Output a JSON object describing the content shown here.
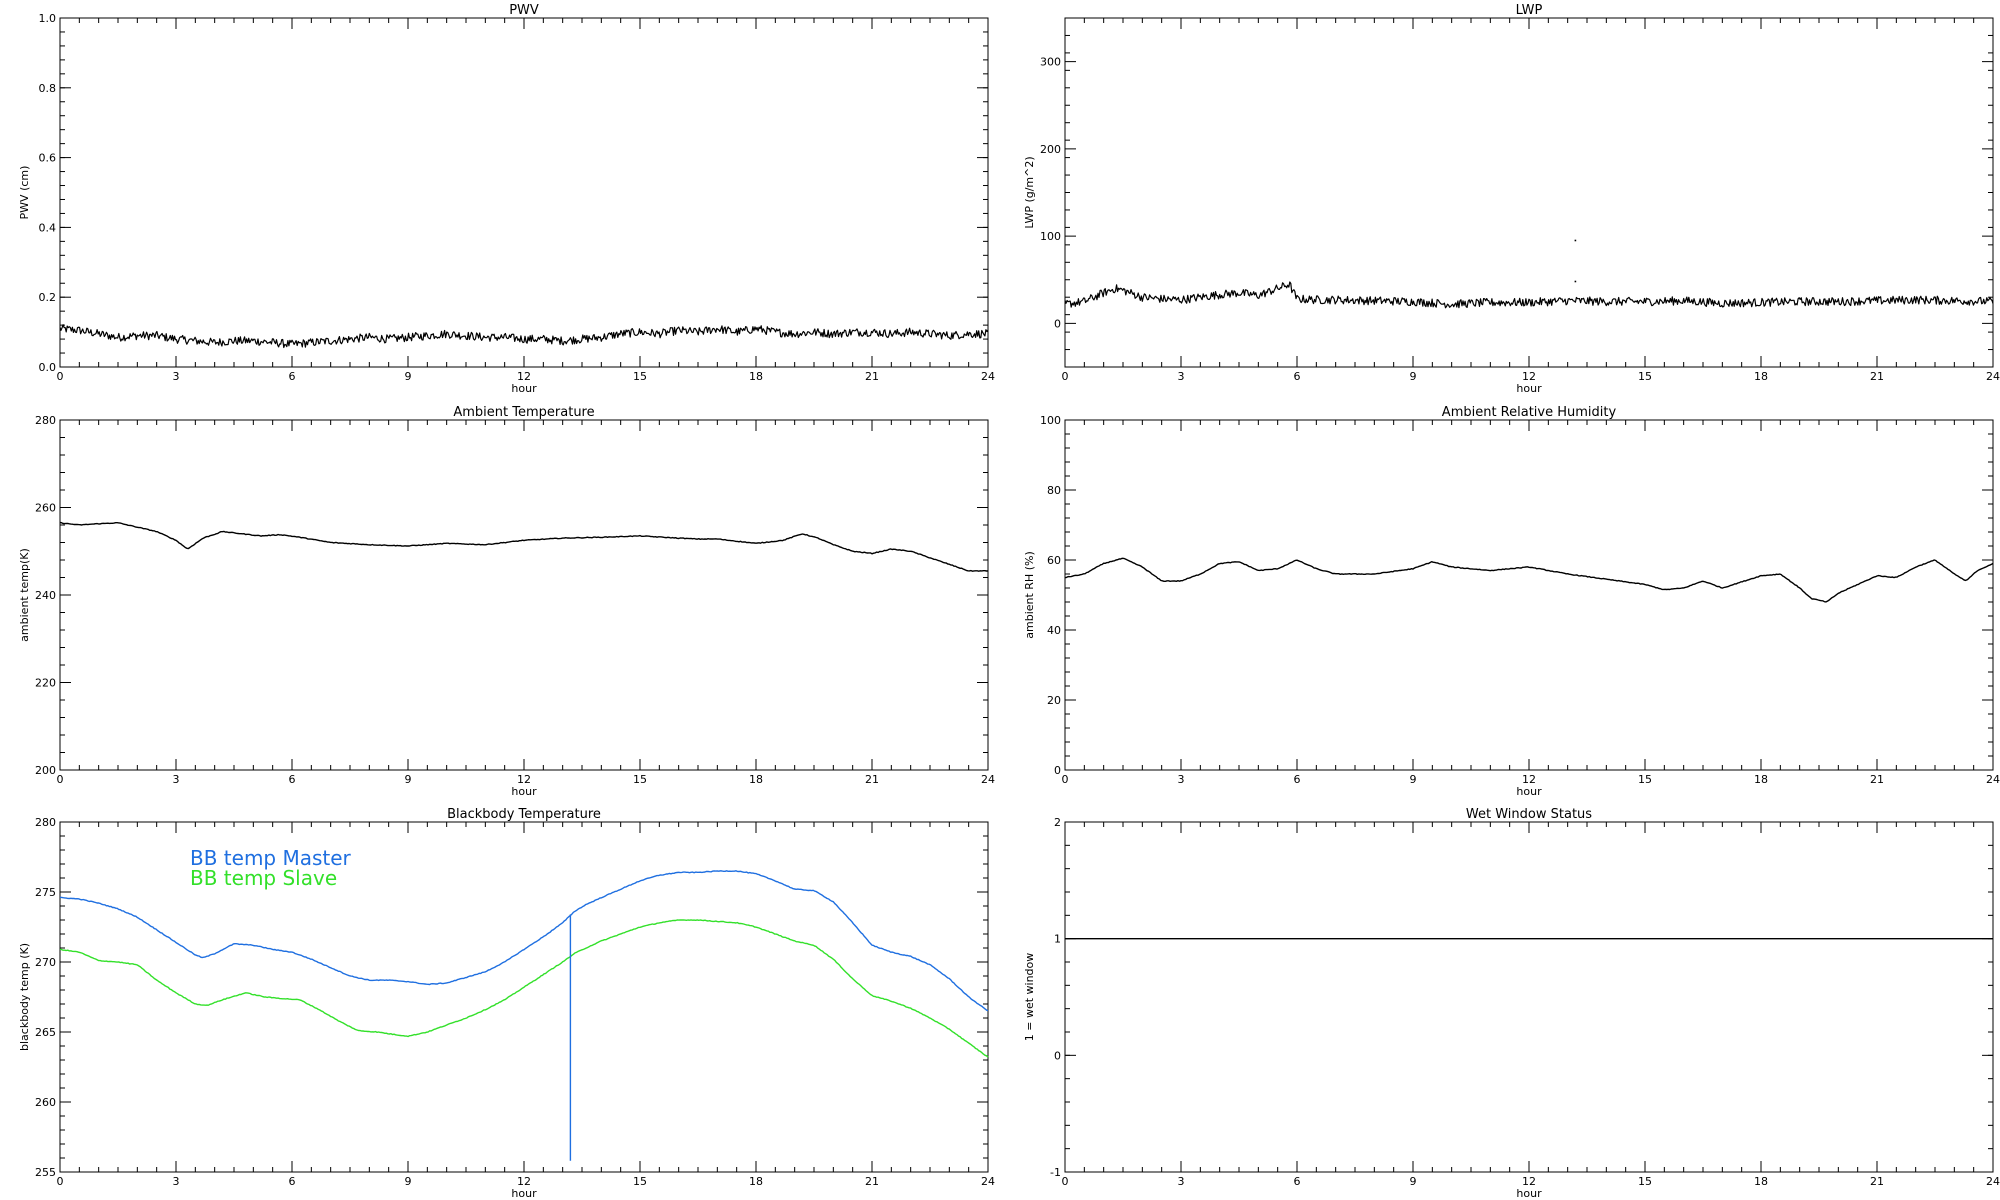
{
  "chart_data": [
    {
      "id": "pwv",
      "type": "line",
      "title": "PWV",
      "xlabel": "hour",
      "ylabel": "PWV (cm)",
      "xlim": [
        0,
        24
      ],
      "ylim": [
        0,
        1.0
      ],
      "xticks": [
        0,
        3,
        6,
        9,
        12,
        15,
        18,
        21,
        24
      ],
      "xtick_labels": [
        "0",
        "3",
        "6",
        "9",
        "12",
        "15",
        "18",
        "21",
        "24"
      ],
      "yticks": [
        0,
        0.2,
        0.4,
        0.6,
        0.8,
        1.0
      ],
      "ytick_labels": [
        "0.0",
        "0.2",
        "0.4",
        "0.6",
        "0.8",
        "1.0"
      ],
      "noisy": true,
      "series": [
        {
          "color": "#000000",
          "x": [
            0,
            0.5,
            1,
            1.5,
            2,
            2.5,
            3,
            3.5,
            4,
            4.5,
            5,
            5.5,
            6,
            6.5,
            7,
            7.5,
            8,
            8.5,
            9,
            9.5,
            10,
            10.5,
            11,
            11.5,
            12,
            12.5,
            13,
            13.5,
            14,
            14.5,
            15,
            15.5,
            16,
            16.5,
            17,
            17.5,
            18,
            18.5,
            19,
            19.5,
            20,
            20.5,
            21,
            21.5,
            22,
            22.5,
            23,
            23.5,
            24
          ],
          "y": [
            0.11,
            0.105,
            0.095,
            0.085,
            0.09,
            0.09,
            0.08,
            0.075,
            0.07,
            0.075,
            0.075,
            0.07,
            0.065,
            0.07,
            0.075,
            0.08,
            0.085,
            0.08,
            0.085,
            0.09,
            0.095,
            0.09,
            0.085,
            0.085,
            0.08,
            0.08,
            0.075,
            0.08,
            0.085,
            0.095,
            0.1,
            0.095,
            0.105,
            0.1,
            0.11,
            0.1,
            0.11,
            0.1,
            0.095,
            0.1,
            0.095,
            0.1,
            0.1,
            0.095,
            0.1,
            0.095,
            0.09,
            0.095,
            0.095
          ]
        }
      ]
    },
    {
      "id": "lwp",
      "type": "line",
      "title": "LWP",
      "xlabel": "hour",
      "ylabel": "LWP (g/m^2)",
      "xlim": [
        0,
        24
      ],
      "ylim": [
        -50,
        350
      ],
      "xticks": [
        0,
        3,
        6,
        9,
        12,
        15,
        18,
        21,
        24
      ],
      "xtick_labels": [
        "0",
        "3",
        "6",
        "9",
        "12",
        "15",
        "18",
        "21",
        "24"
      ],
      "yticks": [
        0,
        100,
        200,
        300
      ],
      "ytick_labels": [
        "0",
        "100",
        "200",
        "300"
      ],
      "noisy": true,
      "series": [
        {
          "color": "#000000",
          "x": [
            0,
            0.5,
            1,
            1.3,
            1.5,
            2,
            2.5,
            3,
            3.5,
            4,
            4.5,
            5,
            5.5,
            5.8,
            6,
            6.5,
            7,
            8,
            9,
            10,
            11,
            12,
            13,
            14,
            15,
            16,
            17,
            18,
            19,
            20,
            21,
            22,
            23,
            24
          ],
          "y": [
            22,
            25,
            35,
            40,
            38,
            30,
            28,
            27,
            30,
            33,
            35,
            32,
            40,
            45,
            28,
            27,
            27,
            26,
            25,
            22,
            24,
            24,
            26,
            25,
            25,
            26,
            23,
            24,
            25,
            25,
            26,
            27,
            26,
            25
          ]
        }
      ],
      "outliers": [
        {
          "x": 13.2,
          "y": 95
        },
        {
          "x": 13.2,
          "y": 48
        }
      ]
    },
    {
      "id": "ambient-temperature",
      "type": "line",
      "title": "Ambient Temperature",
      "xlabel": "hour",
      "ylabel": "ambient temp(K)",
      "xlim": [
        0,
        24
      ],
      "ylim": [
        200,
        280
      ],
      "xticks": [
        0,
        3,
        6,
        9,
        12,
        15,
        18,
        21,
        24
      ],
      "xtick_labels": [
        "0",
        "3",
        "6",
        "9",
        "12",
        "15",
        "18",
        "21",
        "24"
      ],
      "yticks": [
        200,
        220,
        240,
        260,
        280
      ],
      "ytick_labels": [
        "200",
        "220",
        "240",
        "260",
        "280"
      ],
      "noisy": false,
      "series": [
        {
          "color": "#000000",
          "x": [
            0,
            0.5,
            1,
            1.5,
            2,
            2.5,
            3,
            3.3,
            3.7,
            4.2,
            4.7,
            5.2,
            5.7,
            6.2,
            7,
            8,
            9,
            10,
            11,
            12,
            13,
            14,
            15,
            16,
            16.5,
            17,
            18,
            18.7,
            19.2,
            19.6,
            20,
            20.5,
            21,
            21.5,
            22,
            22.5,
            23,
            23.5,
            24
          ],
          "y": [
            256.5,
            256,
            256.3,
            256.5,
            255.5,
            254.5,
            252.5,
            250.5,
            253,
            254.5,
            254,
            253.5,
            253.8,
            253.2,
            252,
            251.5,
            251.2,
            251.8,
            251.5,
            252.5,
            253,
            253.2,
            253.5,
            253,
            252.8,
            252.8,
            251.8,
            252.5,
            254,
            253,
            251.5,
            250,
            249.5,
            250.5,
            250,
            248.5,
            247,
            245.5,
            245.5
          ]
        }
      ]
    },
    {
      "id": "ambient-relative-humidity",
      "type": "line",
      "title": "Ambient Relative Humidity",
      "xlabel": "hour",
      "ylabel": "ambient RH (%)",
      "xlim": [
        0,
        24
      ],
      "ylim": [
        0,
        100
      ],
      "xticks": [
        0,
        3,
        6,
        9,
        12,
        15,
        18,
        21,
        24
      ],
      "xtick_labels": [
        "0",
        "3",
        "6",
        "9",
        "12",
        "15",
        "18",
        "21",
        "24"
      ],
      "yticks": [
        0,
        20,
        40,
        60,
        80,
        100
      ],
      "ytick_labels": [
        "0",
        "20",
        "40",
        "60",
        "80",
        "100"
      ],
      "noisy": false,
      "series": [
        {
          "color": "#000000",
          "x": [
            0,
            0.5,
            1,
            1.5,
            2,
            2.5,
            3,
            3.5,
            4,
            4.5,
            5,
            5.5,
            6,
            6.5,
            7,
            8,
            9,
            9.5,
            10,
            11,
            12,
            13,
            14,
            15,
            15.5,
            16,
            16.5,
            17,
            18,
            18.5,
            19,
            19.3,
            19.7,
            20,
            20.5,
            21,
            21.5,
            22,
            22.5,
            23,
            23.3,
            23.6,
            24
          ],
          "y": [
            55,
            56,
            59,
            60.5,
            58,
            54,
            54,
            56,
            59,
            59.5,
            57,
            57.5,
            60,
            57.5,
            56,
            56,
            57.5,
            59.5,
            58,
            57,
            58,
            56,
            54.5,
            53,
            51.5,
            52,
            54,
            52,
            55.5,
            56,
            52,
            49,
            48,
            50.5,
            53,
            55.5,
            55,
            58,
            60,
            56,
            54,
            57,
            59
          ]
        }
      ]
    },
    {
      "id": "blackbody-temperature",
      "type": "line",
      "title": "Blackbody Temperature",
      "xlabel": "hour",
      "ylabel": "blackbody temp (K)",
      "xlim": [
        0,
        24
      ],
      "ylim": [
        255,
        280
      ],
      "xticks": [
        0,
        3,
        6,
        9,
        12,
        15,
        18,
        21,
        24
      ],
      "xtick_labels": [
        "0",
        "3",
        "6",
        "9",
        "12",
        "15",
        "18",
        "21",
        "24"
      ],
      "yticks": [
        255,
        260,
        265,
        270,
        275,
        280
      ],
      "ytick_labels": [
        "255",
        "260",
        "265",
        "270",
        "275",
        "280"
      ],
      "noisy": false,
      "legend": [
        "BB temp Master",
        "BB temp Slave"
      ],
      "series": [
        {
          "name": "BB temp Master",
          "color": "#1f6fe0",
          "x": [
            0,
            0.5,
            1,
            1.5,
            2,
            2.5,
            3,
            3.5,
            3.7,
            4,
            4.5,
            5,
            5.5,
            6,
            6.5,
            7,
            7.5,
            8,
            8.5,
            9,
            9.5,
            10,
            10.5,
            11,
            11.5,
            12,
            12.5,
            13,
            13.3,
            13.6,
            14,
            14.5,
            15,
            15.5,
            16,
            16.5,
            17,
            17.5,
            18,
            18.5,
            19,
            19.5,
            20,
            20.5,
            21,
            21.5,
            22,
            22.5,
            23,
            23.5,
            24
          ],
          "y": [
            274.6,
            274.5,
            274.2,
            273.8,
            273.2,
            272.3,
            271.4,
            270.5,
            270.3,
            270.6,
            271.3,
            271.2,
            270.9,
            270.7,
            270.2,
            269.6,
            269.0,
            268.7,
            268.7,
            268.6,
            268.4,
            268.5,
            268.9,
            269.3,
            270.0,
            270.9,
            271.8,
            272.8,
            273.6,
            274.1,
            274.6,
            275.2,
            275.8,
            276.2,
            276.4,
            276.4,
            276.5,
            276.5,
            276.3,
            275.8,
            275.2,
            275.1,
            274.3,
            272.8,
            271.2,
            270.7,
            270.4,
            269.8,
            268.8,
            267.5,
            266.5
          ]
        },
        {
          "name": "BB temp Slave",
          "color": "#33e02a",
          "x": [
            0,
            0.5,
            1,
            1.5,
            2,
            2.5,
            3,
            3.5,
            3.8,
            4.2,
            4.8,
            5.3,
            5.7,
            6.2,
            6.7,
            7.2,
            7.7,
            8.2,
            8.7,
            9,
            9.5,
            10,
            10.5,
            11,
            11.5,
            12,
            12.5,
            13,
            13.3,
            13.6,
            14,
            14.5,
            15,
            15.5,
            16,
            16.5,
            17,
            17.5,
            18,
            18.5,
            19,
            19.5,
            20,
            20.5,
            21,
            21.5,
            22,
            22.5,
            23,
            23.5,
            24
          ],
          "y": [
            270.9,
            270.7,
            270.1,
            270.0,
            269.8,
            268.7,
            267.8,
            267.0,
            266.9,
            267.3,
            267.8,
            267.5,
            267.4,
            267.3,
            266.6,
            265.8,
            265.1,
            265.0,
            264.8,
            264.7,
            265.0,
            265.5,
            266.0,
            266.6,
            267.3,
            268.2,
            269.1,
            270.0,
            270.6,
            271.0,
            271.5,
            272.0,
            272.5,
            272.8,
            273.0,
            273.0,
            272.9,
            272.8,
            272.5,
            272.0,
            271.5,
            271.2,
            270.2,
            268.8,
            267.6,
            267.2,
            266.7,
            266.0,
            265.2,
            264.2,
            263.2
          ]
        }
      ],
      "spike": {
        "x": 13.2,
        "y_low": 255.8,
        "y_high": 273.4,
        "color": "#1f6fe0"
      }
    },
    {
      "id": "wet-window-status",
      "type": "line",
      "title": "Wet Window Status",
      "xlabel": "hour",
      "ylabel": "1 = wet window",
      "xlim": [
        0,
        24
      ],
      "ylim": [
        -1,
        2
      ],
      "xticks": [
        0,
        3,
        6,
        9,
        12,
        15,
        18,
        21,
        24
      ],
      "xtick_labels": [
        "0",
        "3",
        "6",
        "9",
        "12",
        "15",
        "18",
        "21",
        "24"
      ],
      "yticks": [
        -1,
        0,
        1,
        2
      ],
      "ytick_labels": [
        "-1",
        "0",
        "1",
        "2"
      ],
      "noisy": false,
      "series": [
        {
          "color": "#000000",
          "x": [
            0,
            24
          ],
          "y": [
            1,
            1
          ]
        }
      ]
    }
  ]
}
